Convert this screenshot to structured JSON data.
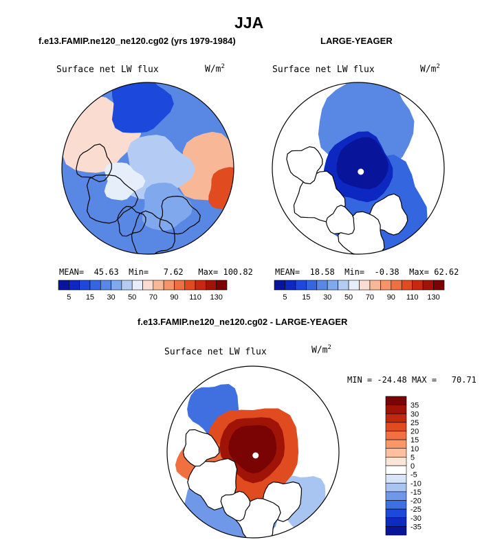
{
  "figure": {
    "title": "JJA",
    "left_header": "f.e13.FAMIP.ne120_ne120.cg02 (yrs 1979-1984)",
    "right_header": "LARGE-YEAGER",
    "diff_header": "f.e13.FAMIP.ne120_ne120.cg02 - LARGE-YEAGER"
  },
  "chart_data": [
    {
      "type": "heatmap",
      "projection": "north-polar-stereographic",
      "variable": "Surface net LW flux",
      "units": "W/m",
      "units_exp": "2",
      "stats": {
        "mean_label": "MEAN=",
        "mean": "45.63",
        "min_label": "Min=",
        "min": "7.62",
        "max_label": "Max=",
        "max": "100.82"
      },
      "colorbar": {
        "orientation": "horizontal",
        "tick_labels": [
          "5",
          "15",
          "30",
          "50",
          "70",
          "90",
          "110",
          "130"
        ]
      }
    },
    {
      "type": "heatmap",
      "projection": "north-polar-stereographic",
      "variable": "Surface net LW flux",
      "units": "W/m",
      "units_exp": "2",
      "stats": {
        "mean_label": "MEAN=",
        "mean": "18.58",
        "min_label": "Min=",
        "min": "-0.38",
        "max_label": "Max=",
        "max": "62.62"
      },
      "colorbar": {
        "orientation": "horizontal",
        "tick_labels": [
          "5",
          "15",
          "30",
          "50",
          "70",
          "90",
          "110",
          "130"
        ]
      }
    },
    {
      "type": "heatmap",
      "projection": "north-polar-stereographic",
      "variable": "Surface net LW flux",
      "units": "W/m",
      "units_exp": "2",
      "stats": {
        "min_label": "MIN =",
        "min": "-24.48",
        "max_label": "MAX =",
        "max": "70.71"
      },
      "colorbar": {
        "orientation": "vertical",
        "tick_labels": [
          "35",
          "30",
          "25",
          "20",
          "15",
          "10",
          "5",
          "0",
          "-5",
          "-10",
          "-15",
          "-20",
          "-25",
          "-30",
          "-35"
        ]
      }
    }
  ],
  "colors": {
    "abs_scale": [
      "#08149a",
      "#0c28c0",
      "#1c48dc",
      "#3466e0",
      "#5888e4",
      "#80a8ec",
      "#b4ccf4",
      "#e6eefa",
      "#fadcd0",
      "#f8b898",
      "#f49468",
      "#ec7040",
      "#e04c20",
      "#c82810",
      "#a01408",
      "#7a0404"
    ],
    "diff_scale": [
      "#7a0404",
      "#a01408",
      "#c02810",
      "#e04c20",
      "#f07040",
      "#f89868",
      "#fcc0a0",
      "#fde4d4",
      "#ffffff",
      "#d8e4f8",
      "#a8c4f0",
      "#7098e8",
      "#4070e0",
      "#1c48dc",
      "#0c2cc0",
      "#08149a"
    ]
  }
}
